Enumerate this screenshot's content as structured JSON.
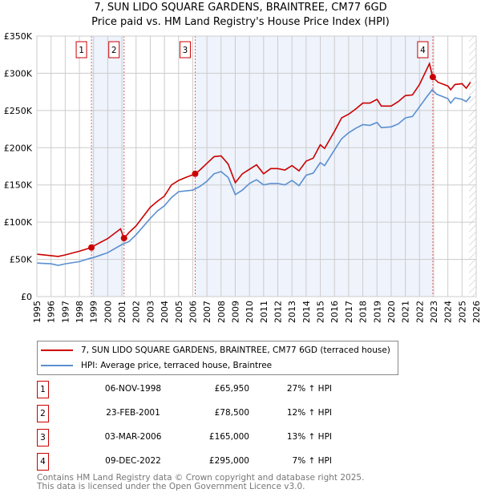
{
  "title": "7, SUN LIDO SQUARE GARDENS, BRAINTREE, CM77 6GD",
  "subtitle": "Price paid vs. HM Land Registry's House Price Index (HPI)",
  "chart_data": {
    "type": "line",
    "xlim": [
      1995,
      2026
    ],
    "ylim": [
      0,
      350000
    ],
    "yticks": [
      {
        "v": 0,
        "label": "£0"
      },
      {
        "v": 50000,
        "label": "£50K"
      },
      {
        "v": 100000,
        "label": "£100K"
      },
      {
        "v": 150000,
        "label": "£150K"
      },
      {
        "v": 200000,
        "label": "£200K"
      },
      {
        "v": 250000,
        "label": "£250K"
      },
      {
        "v": 300000,
        "label": "£300K"
      },
      {
        "v": 350000,
        "label": "£350K"
      }
    ],
    "xticks": [
      "1995",
      "1996",
      "1997",
      "1998",
      "1999",
      "2000",
      "2001",
      "2002",
      "2003",
      "2004",
      "2005",
      "2006",
      "2007",
      "2008",
      "2009",
      "2010",
      "2011",
      "2012",
      "2013",
      "2014",
      "2015",
      "2016",
      "2017",
      "2018",
      "2019",
      "2020",
      "2021",
      "2022",
      "2023",
      "2024",
      "2025",
      "2026"
    ],
    "colors": {
      "property": "#cc0000",
      "hpi": "#5b8fd0",
      "shade": "#eef3fc"
    },
    "series": [
      {
        "name": "7, SUN LIDO SQUARE GARDENS, BRAINTREE, CM77 6GD (terraced house)",
        "key": "property",
        "x": [
          1995,
          1996,
          1996.5,
          1997,
          1998,
          1998.85,
          1999,
          2000,
          2000.9,
          2001.15,
          2001.5,
          2002,
          2003,
          2003.5,
          2004,
          2004.5,
          2005,
          2005.5,
          2006.2,
          2006.5,
          2007,
          2007.5,
          2008,
          2008.5,
          2009,
          2009.5,
          2010,
          2010.5,
          2011,
          2011.5,
          2012,
          2012.5,
          2013,
          2013.5,
          2014,
          2014.5,
          2015,
          2015.3,
          2016,
          2016.5,
          2017,
          2017.5,
          2018,
          2018.5,
          2019,
          2019.3,
          2020,
          2020.5,
          2021,
          2021.5,
          2022,
          2022.7,
          2022.93,
          2023.3,
          2024,
          2024.2,
          2024.5,
          2025,
          2025.3,
          2025.6
        ],
        "y": [
          57000,
          55000,
          54000,
          56000,
          61000,
          65950,
          68000,
          78000,
          91000,
          78500,
          86000,
          95000,
          120000,
          128000,
          135000,
          150000,
          156000,
          160000,
          165000,
          170000,
          179000,
          188000,
          189000,
          178000,
          153000,
          165000,
          171000,
          177000,
          165000,
          172000,
          172000,
          170000,
          176000,
          169000,
          182000,
          186000,
          204000,
          199000,
          222000,
          240000,
          245000,
          252000,
          260000,
          260000,
          265000,
          256000,
          256000,
          262000,
          270000,
          271000,
          285000,
          313000,
          295000,
          288000,
          283000,
          278000,
          285000,
          286000,
          280000,
          288000
        ]
      },
      {
        "name": "HPI: Average price, terraced house, Braintree",
        "key": "hpi",
        "x": [
          1995,
          1996,
          1996.5,
          1997,
          1998,
          1998.85,
          1999,
          2000,
          2001,
          2001.5,
          2002,
          2003,
          2003.5,
          2004,
          2004.5,
          2005,
          2006,
          2006.5,
          2007,
          2007.5,
          2008,
          2008.5,
          2009,
          2009.5,
          2010,
          2010.5,
          2011,
          2011.5,
          2012,
          2012.5,
          2013,
          2013.5,
          2014,
          2014.5,
          2015,
          2015.3,
          2016,
          2016.5,
          2017,
          2017.5,
          2018,
          2018.5,
          2019,
          2019.3,
          2020,
          2020.5,
          2021,
          2021.5,
          2022,
          2022.5,
          2022.9,
          2023.2,
          2024,
          2024.2,
          2024.5,
          2025,
          2025.3,
          2025.6
        ],
        "y": [
          45000,
          44000,
          42000,
          44000,
          47000,
          52000,
          52500,
          59000,
          70000,
          74000,
          83000,
          105000,
          115000,
          122000,
          133000,
          141000,
          143000,
          148000,
          155000,
          165000,
          168000,
          160000,
          137000,
          143000,
          152000,
          157000,
          150000,
          152000,
          152000,
          150000,
          156000,
          149000,
          163000,
          166000,
          180000,
          176000,
          197000,
          212000,
          220000,
          226000,
          231000,
          230000,
          234000,
          227000,
          228000,
          232000,
          240000,
          242000,
          255000,
          268000,
          278000,
          272000,
          266000,
          260000,
          267000,
          265000,
          262000,
          269000
        ]
      }
    ],
    "sales": [
      {
        "n": "1",
        "x": 1998.85,
        "y": 65950
      },
      {
        "n": "2",
        "x": 2001.15,
        "y": 78500
      },
      {
        "n": "3",
        "x": 2006.17,
        "y": 165000
      },
      {
        "n": "4",
        "x": 2022.94,
        "y": 295000
      }
    ],
    "forecast_start": 2025.5
  },
  "legend": {
    "property": "7, SUN LIDO SQUARE GARDENS, BRAINTREE, CM77 6GD (terraced house)",
    "hpi": "HPI: Average price, terraced house, Braintree"
  },
  "transactions": [
    {
      "n": "1",
      "date": "06-NOV-1998",
      "price": "£65,950",
      "hpi": "27% ↑ HPI"
    },
    {
      "n": "2",
      "date": "23-FEB-2001",
      "price": "£78,500",
      "hpi": "12% ↑ HPI"
    },
    {
      "n": "3",
      "date": "03-MAR-2006",
      "price": "£165,000",
      "hpi": "13% ↑ HPI"
    },
    {
      "n": "4",
      "date": "09-DEC-2022",
      "price": "£295,000",
      "hpi": "7% ↑ HPI"
    }
  ],
  "footer": [
    "Contains HM Land Registry data © Crown copyright and database right 2025.",
    "This data is licensed under the Open Government Licence v3.0."
  ]
}
